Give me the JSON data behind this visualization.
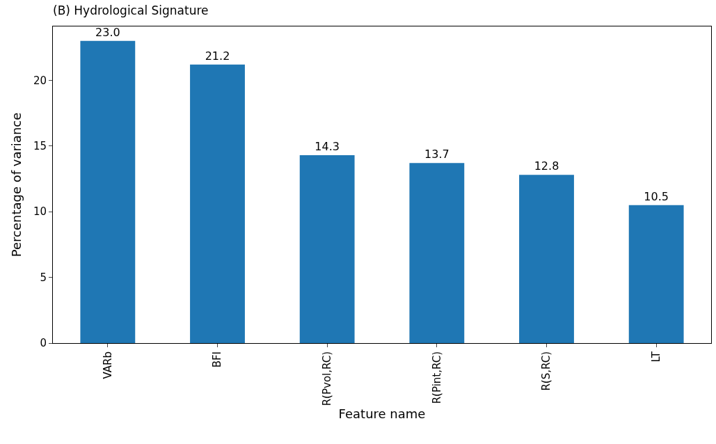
{
  "chart_data": {
    "type": "bar",
    "title": "(B) Hydrological Signature",
    "xlabel": "Feature name",
    "ylabel": "Percentage of variance",
    "categories": [
      "VARb",
      "BFI",
      "R(Pvol,RC)",
      "R(Pint,RC)",
      "R(S,RC)",
      "LT"
    ],
    "values": [
      23.0,
      21.2,
      14.3,
      13.7,
      12.8,
      10.5
    ],
    "value_labels": [
      "23.0",
      "21.2",
      "14.3",
      "13.7",
      "12.8",
      "10.5"
    ],
    "color": "#1f77b4",
    "ylim": [
      0,
      24.1
    ],
    "yticks": [
      0,
      5,
      10,
      15,
      20
    ],
    "grid": false
  }
}
